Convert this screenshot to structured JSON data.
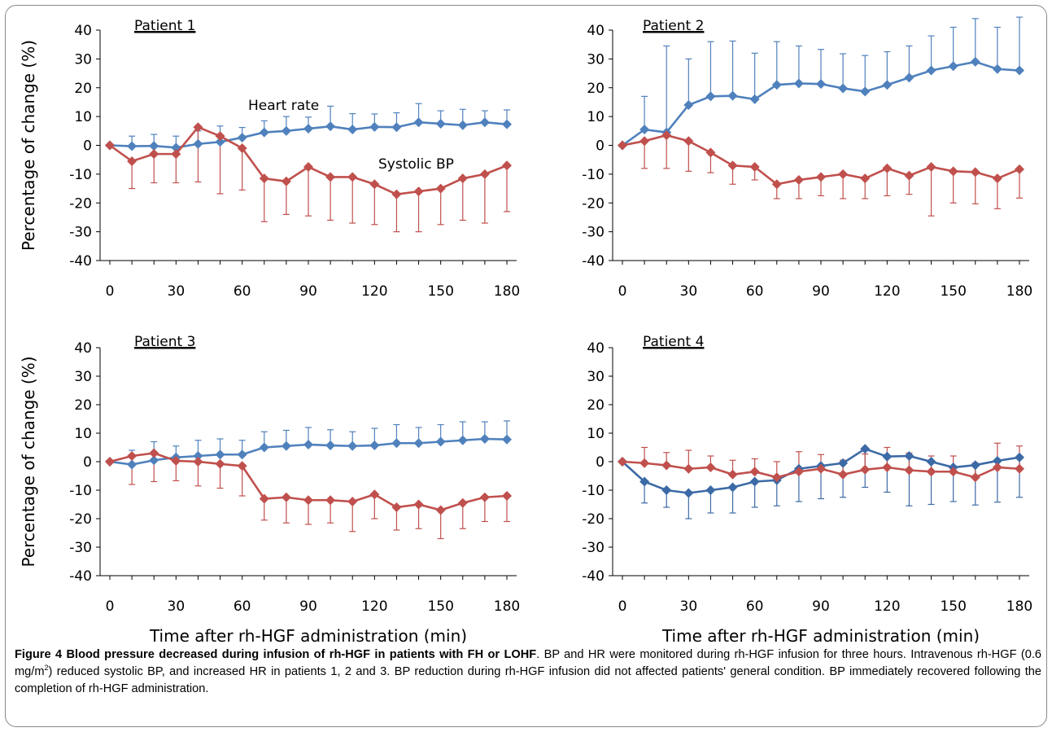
{
  "figure": {
    "caption_label": "Figure 4",
    "caption_title": "Blood pressure decreased during infusion of rh-HGF in patients with FH or LOHF",
    "caption_pre": ". BP and HR were monitored during rh-HGF infusion for three hours. Intravenous rh-HGF (0.6 mg/m",
    "caption_sup": "2",
    "caption_post": ") reduced systolic BP, and increased HR in patients 1, 2 and 3. BP reduction during rh-HGF infusion did not affected patients' general condition. BP immediately recovered following the completion of rh-HGF administration."
  },
  "colors": {
    "heart_rate": "#4f81bd",
    "heart_rate_p4": "#3c6aa6",
    "systolic_bp": "#c0504d"
  },
  "chart_data": [
    {
      "type": "line",
      "title": "Patient 1",
      "ylabel": "Percentage of change (%)",
      "xlabel": "",
      "x": [
        0,
        10,
        20,
        30,
        40,
        50,
        60,
        70,
        80,
        90,
        100,
        110,
        120,
        130,
        140,
        150,
        160,
        170,
        180
      ],
      "xticks": [
        "0",
        "30",
        "60",
        "90",
        "120",
        "150",
        "180"
      ],
      "yticks": [
        "40",
        "30",
        "20",
        "10",
        "0",
        "-10",
        "-20",
        "-30",
        "-40"
      ],
      "ylim": [
        -40,
        40
      ],
      "xlim": [
        0,
        180
      ],
      "annotations": [
        "Heart rate",
        "Systolic BP"
      ],
      "series": [
        {
          "name": "Heart rate",
          "color": "#4f81bd",
          "values": [
            0,
            -0.3,
            -0.2,
            -0.8,
            0.5,
            1.2,
            2.7,
            4.5,
            5.0,
            5.8,
            6.6,
            5.5,
            6.4,
            6.3,
            8.0,
            7.5,
            7.0,
            8.0,
            7.3
          ],
          "err_up": [
            0,
            3.5,
            4.0,
            4.0,
            4.5,
            5.5,
            3.5,
            4.0,
            5.0,
            4.0,
            7.0,
            5.5,
            4.5,
            5.0,
            6.5,
            4.5,
            5.5,
            4.0,
            5.0
          ],
          "err_down": [
            0,
            0,
            0,
            0,
            0,
            0,
            0,
            0,
            0,
            0,
            0,
            0,
            0,
            0,
            0,
            0,
            0,
            0,
            0
          ]
        },
        {
          "name": "Systolic BP",
          "color": "#c0504d",
          "values": [
            0,
            -5.5,
            -3.0,
            -3.0,
            6.3,
            3.2,
            -1.0,
            -11.5,
            -12.5,
            -7.5,
            -11.0,
            -11.0,
            -13.5,
            -17.0,
            -16.0,
            -15.0,
            -11.5,
            -10.0,
            -7.0
          ],
          "err_up": [
            0,
            0,
            0,
            0,
            0,
            0,
            0,
            0,
            0,
            0,
            0,
            0,
            0,
            0,
            0,
            0,
            0,
            0,
            0
          ],
          "err_down": [
            0,
            9.5,
            10.0,
            10.0,
            19.0,
            20.0,
            14.5,
            15.0,
            11.5,
            17.0,
            15.0,
            16.0,
            14.0,
            13.0,
            14.0,
            12.5,
            14.5,
            17.0,
            16.0
          ]
        }
      ]
    },
    {
      "type": "line",
      "title": "Patient 2",
      "ylabel": "",
      "xlabel": "",
      "x": [
        0,
        10,
        20,
        30,
        40,
        50,
        60,
        70,
        80,
        90,
        100,
        110,
        120,
        130,
        140,
        150,
        160,
        170,
        180
      ],
      "xticks": [
        "0",
        "30",
        "60",
        "90",
        "120",
        "150",
        "180"
      ],
      "yticks": [
        "40",
        "30",
        "20",
        "10",
        "0",
        "-10",
        "-20",
        "-30",
        "-40"
      ],
      "ylim": [
        -40,
        40
      ],
      "xlim": [
        0,
        180
      ],
      "annotations": [],
      "series": [
        {
          "name": "Heart rate",
          "color": "#4f81bd",
          "values": [
            0,
            5.5,
            4.5,
            14.0,
            17.0,
            17.2,
            16.0,
            21.0,
            21.5,
            21.3,
            19.8,
            18.7,
            21.0,
            23.5,
            26.0,
            27.5,
            29.0,
            26.5,
            26.0
          ],
          "err_up": [
            0,
            11.5,
            30.0,
            16.0,
            19.0,
            19.0,
            16.0,
            15.0,
            13.0,
            12.0,
            12.0,
            12.5,
            11.5,
            11.0,
            12.0,
            13.5,
            15.0,
            14.5,
            18.5
          ],
          "err_down": [
            0,
            0,
            0,
            0,
            0,
            0,
            0,
            0,
            0,
            0,
            0,
            0,
            0,
            0,
            0,
            0,
            0,
            0,
            0
          ]
        },
        {
          "name": "Systolic BP",
          "color": "#c0504d",
          "values": [
            0,
            1.5,
            3.5,
            1.5,
            -2.5,
            -7.0,
            -7.5,
            -13.5,
            -12.0,
            -11.0,
            -10.0,
            -11.5,
            -8.0,
            -10.5,
            -7.5,
            -9.0,
            -9.3,
            -11.5,
            -8.3
          ],
          "err_up": [
            0,
            0,
            0,
            0,
            0,
            0,
            0,
            0,
            0,
            0,
            0,
            0,
            0,
            0,
            0,
            0,
            0,
            0,
            0
          ],
          "err_down": [
            0,
            9.5,
            11.5,
            10.5,
            7.0,
            6.5,
            4.5,
            5.0,
            6.5,
            6.5,
            8.5,
            7.0,
            9.5,
            6.5,
            17.0,
            11.0,
            11.0,
            10.5,
            10.0
          ]
        }
      ]
    },
    {
      "type": "line",
      "title": "Patient 3",
      "ylabel": "Percentage of change (%)",
      "xlabel": "Time after rh-HGF administration (min)",
      "x": [
        0,
        10,
        20,
        30,
        40,
        50,
        60,
        70,
        80,
        90,
        100,
        110,
        120,
        130,
        140,
        150,
        160,
        170,
        180
      ],
      "xticks": [
        "0",
        "30",
        "60",
        "90",
        "120",
        "150",
        "180"
      ],
      "yticks": [
        "40",
        "30",
        "20",
        "10",
        "0",
        "-10",
        "-20",
        "-30",
        "-40"
      ],
      "ylim": [
        -40,
        40
      ],
      "xlim": [
        0,
        180
      ],
      "annotations": [],
      "series": [
        {
          "name": "Heart rate",
          "color": "#4f81bd",
          "values": [
            0,
            -1.0,
            0.5,
            1.5,
            2.0,
            2.5,
            2.5,
            5.0,
            5.5,
            6.0,
            5.7,
            5.5,
            5.7,
            6.5,
            6.5,
            7.0,
            7.5,
            8.0,
            7.8
          ],
          "err_up": [
            0,
            5.0,
            6.5,
            4.0,
            5.5,
            5.5,
            5.0,
            5.5,
            5.5,
            6.0,
            5.5,
            5.0,
            6.0,
            6.5,
            5.5,
            6.0,
            6.5,
            6.0,
            6.5
          ],
          "err_down": [
            0,
            0,
            0,
            0,
            0,
            0,
            0,
            0,
            0,
            0,
            0,
            0,
            0,
            0,
            0,
            0,
            0,
            0,
            0
          ]
        },
        {
          "name": "Systolic BP",
          "color": "#c0504d",
          "values": [
            0,
            2.0,
            3.0,
            0.3,
            0.0,
            -0.8,
            -1.5,
            -13.0,
            -12.5,
            -13.5,
            -13.5,
            -14.0,
            -11.5,
            -16.0,
            -15.0,
            -17.0,
            -14.5,
            -12.5,
            -12.0
          ],
          "err_up": [
            0,
            0,
            0,
            0,
            0,
            0,
            0,
            0,
            0,
            0,
            0,
            0,
            0,
            0,
            0,
            0,
            0,
            0,
            0
          ],
          "err_down": [
            0,
            10.0,
            10.0,
            7.0,
            8.5,
            8.5,
            10.5,
            7.5,
            9.0,
            8.5,
            8.0,
            10.5,
            8.5,
            8.0,
            8.5,
            10.0,
            9.0,
            8.5,
            9.0
          ]
        }
      ]
    },
    {
      "type": "line",
      "title": "Patient 4",
      "ylabel": "",
      "xlabel": "Time after rh-HGF administration (min)",
      "x": [
        0,
        10,
        20,
        30,
        40,
        50,
        60,
        70,
        80,
        90,
        100,
        110,
        120,
        130,
        140,
        150,
        160,
        170,
        180
      ],
      "xticks": [
        "0",
        "30",
        "60",
        "90",
        "120",
        "150",
        "180"
      ],
      "yticks": [
        "40",
        "30",
        "20",
        "10",
        "0",
        "-10",
        "-20",
        "-30",
        "-40"
      ],
      "ylim": [
        -40,
        40
      ],
      "xlim": [
        0,
        180
      ],
      "annotations": [],
      "series": [
        {
          "name": "Heart rate",
          "color": "#3c6aa6",
          "values": [
            0,
            -7.0,
            -10.0,
            -11.0,
            -10.0,
            -9.0,
            -7.0,
            -6.5,
            -2.5,
            -1.5,
            -0.5,
            4.5,
            1.8,
            2.0,
            0.0,
            -2.0,
            -1.2,
            0.3,
            1.5
          ],
          "err_up": [
            0,
            0,
            0,
            0,
            0,
            0,
            0,
            0,
            0,
            0,
            0,
            0,
            0,
            0,
            0,
            0,
            0,
            0,
            0
          ],
          "err_down": [
            0,
            7.5,
            6.0,
            9.0,
            8.0,
            9.0,
            9.0,
            9.0,
            11.5,
            11.5,
            12.0,
            13.5,
            12.5,
            17.5,
            15.0,
            12.0,
            14.0,
            14.5,
            14.0
          ]
        },
        {
          "name": "Systolic BP",
          "color": "#c0504d",
          "values": [
            0,
            -0.5,
            -1.3,
            -2.5,
            -2.0,
            -4.5,
            -3.5,
            -5.5,
            -3.5,
            -2.5,
            -4.5,
            -2.8,
            -2.0,
            -3.0,
            -3.5,
            -3.5,
            -5.5,
            -2.0,
            -2.5
          ],
          "err_up": [
            0,
            5.5,
            4.5,
            6.5,
            4.0,
            5.0,
            4.5,
            5.5,
            7.0,
            5.0,
            5.0,
            5.5,
            7.0,
            6.0,
            5.5,
            5.5,
            5.0,
            8.5,
            8.0
          ],
          "err_down": [
            0,
            0,
            0,
            0,
            0,
            0,
            0,
            0,
            0,
            0,
            0,
            0,
            0,
            0,
            0,
            0,
            0,
            0,
            0
          ]
        }
      ]
    }
  ]
}
